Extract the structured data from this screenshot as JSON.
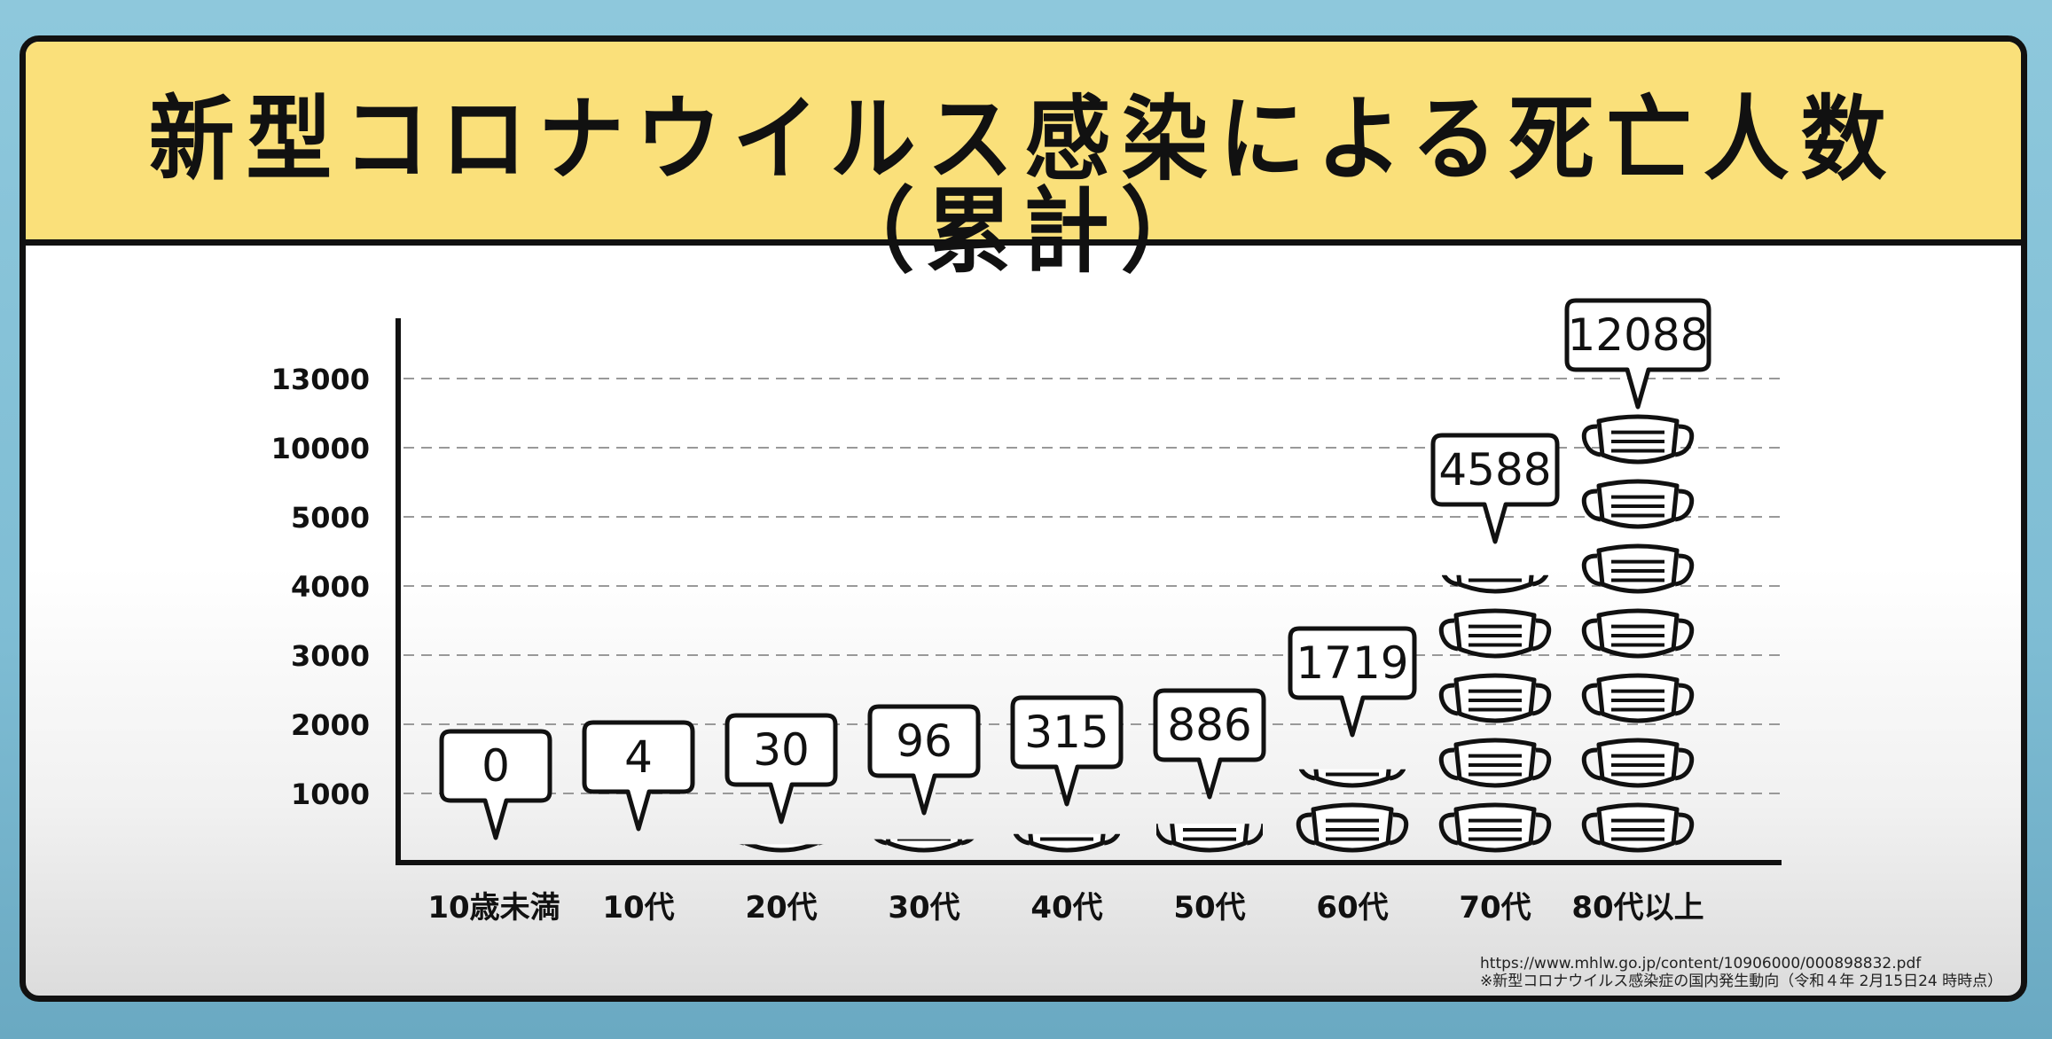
{
  "title": "新型コロナウイルス感染による死亡人数（累計）",
  "source": {
    "url": "https://www.mhlw.go.jp/content/10906000/000898832.pdf",
    "note": "※新型コロナウイルス感染症の国内発生動向（令和４年 2月15日24 時時点）"
  },
  "colors": {
    "background": "#8ec8dc",
    "banner": "#fae07a",
    "ink": "#111111",
    "grid": "#999999"
  },
  "chart_data": {
    "type": "bar",
    "title": "新型コロナウイルス感染による死亡人数（累計）",
    "xlabel": "",
    "ylabel": "",
    "grid": true,
    "ytick_labels": [
      "1000",
      "2000",
      "3000",
      "4000",
      "5000",
      "10000",
      "13000"
    ],
    "categories": [
      "10歳未満",
      "10代",
      "20代",
      "30代",
      "40代",
      "50代",
      "60代",
      "70代",
      "80代以上"
    ],
    "values": [
      0,
      4,
      30,
      96,
      315,
      886,
      1719,
      4588,
      12088
    ],
    "value_labels": [
      "0",
      "4",
      "30",
      "96",
      "315",
      "886",
      "1719",
      "4588",
      "12088"
    ],
    "mark_icon": "face-mask-icon",
    "mask_counts": [
      0,
      0,
      0.2,
      0.3,
      0.4,
      0.6,
      1.4,
      4.4,
      7
    ]
  }
}
